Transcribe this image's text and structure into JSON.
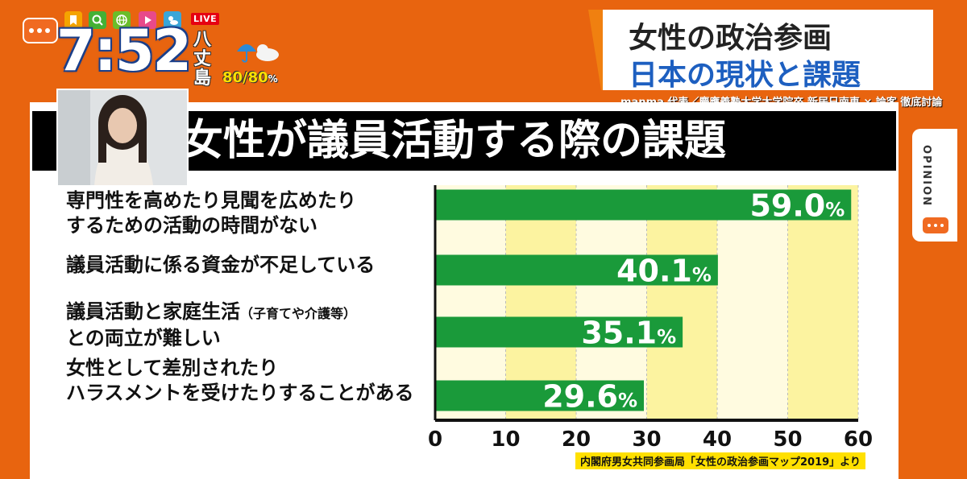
{
  "broadcast": {
    "time": "7:52",
    "live_label": "LIVE",
    "location": "八丈島",
    "precip_values": "80/80",
    "precip_unit": "%"
  },
  "headline": {
    "line1": "女性の政治参画",
    "line2": "日本の現状と課題"
  },
  "guest_line": "manma 代表／慶應義塾大学大学院卒 新居日南恵 × 論客 徹底討論",
  "side_tab": {
    "label": "OPINION"
  },
  "colors": {
    "background": "#e8640f",
    "bar": "#1a9a3a",
    "band_light": "#fffbe0",
    "band_dark": "#fcf3a0",
    "headline_blue": "#1d5fc0"
  },
  "chart_data": {
    "type": "bar",
    "orientation": "horizontal",
    "title": "女性が議員活動する際の課題",
    "categories": [
      {
        "line1": "専門性を高めたり見聞を広めたり",
        "line2": "するための活動の時間がない",
        "note": ""
      },
      {
        "line1": "議員活動に係る資金が不足している",
        "line2": "",
        "note": ""
      },
      {
        "line1": "議員活動と家庭生活",
        "line2": "との両立が難しい",
        "note": "（子育てや介護等）"
      },
      {
        "line1": "女性として差別されたり",
        "line2": "ハラスメントを受けたりすることがある",
        "note": ""
      }
    ],
    "values": [
      59.0,
      40.1,
      35.1,
      29.6
    ],
    "value_labels": [
      "59.0",
      "40.1",
      "35.1",
      "29.6"
    ],
    "value_unit": "%",
    "xlim": [
      0,
      60
    ],
    "xticks": [
      "0",
      "10",
      "20",
      "30",
      "40",
      "50",
      "60"
    ],
    "grid": true,
    "source": "内閣府男女共同参画局「女性の政治参画マップ2019」より"
  }
}
